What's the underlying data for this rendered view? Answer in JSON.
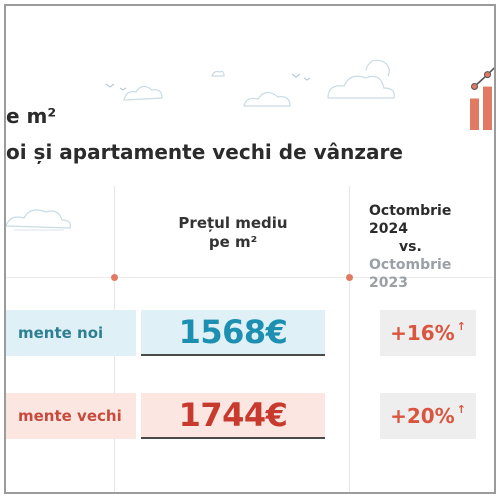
{
  "header": {
    "title": "e m²",
    "subtitle": "oi și apartamente vechi de vânzare"
  },
  "columns": {
    "price_line1": "Prețul mediu",
    "price_line2": "pe m²",
    "compare_line1": "Octombrie 2024",
    "compare_line2": "vs.",
    "compare_line3": "Octombrie 2023"
  },
  "rows": [
    {
      "label": "mente noi",
      "price": "1568€",
      "change": "+16%",
      "arrow": "↑"
    },
    {
      "label": "mente vechi",
      "price": "1744€",
      "change": "+20%",
      "arrow": "↑"
    }
  ],
  "colors": {
    "accent": "#e07a62",
    "new_bg": "#dff0f6",
    "new_text": "#1d8fb0",
    "old_bg": "#fbe6e2",
    "old_text": "#c73a2d",
    "change_bg": "#eeeeee",
    "change_text": "#d9553f"
  },
  "icons": {
    "decor": [
      "cloud-icon",
      "bird-icon",
      "bar-chart-icon"
    ]
  },
  "chart_icon_levels": [
    0.45,
    0.62,
    0.8,
    0.95
  ]
}
